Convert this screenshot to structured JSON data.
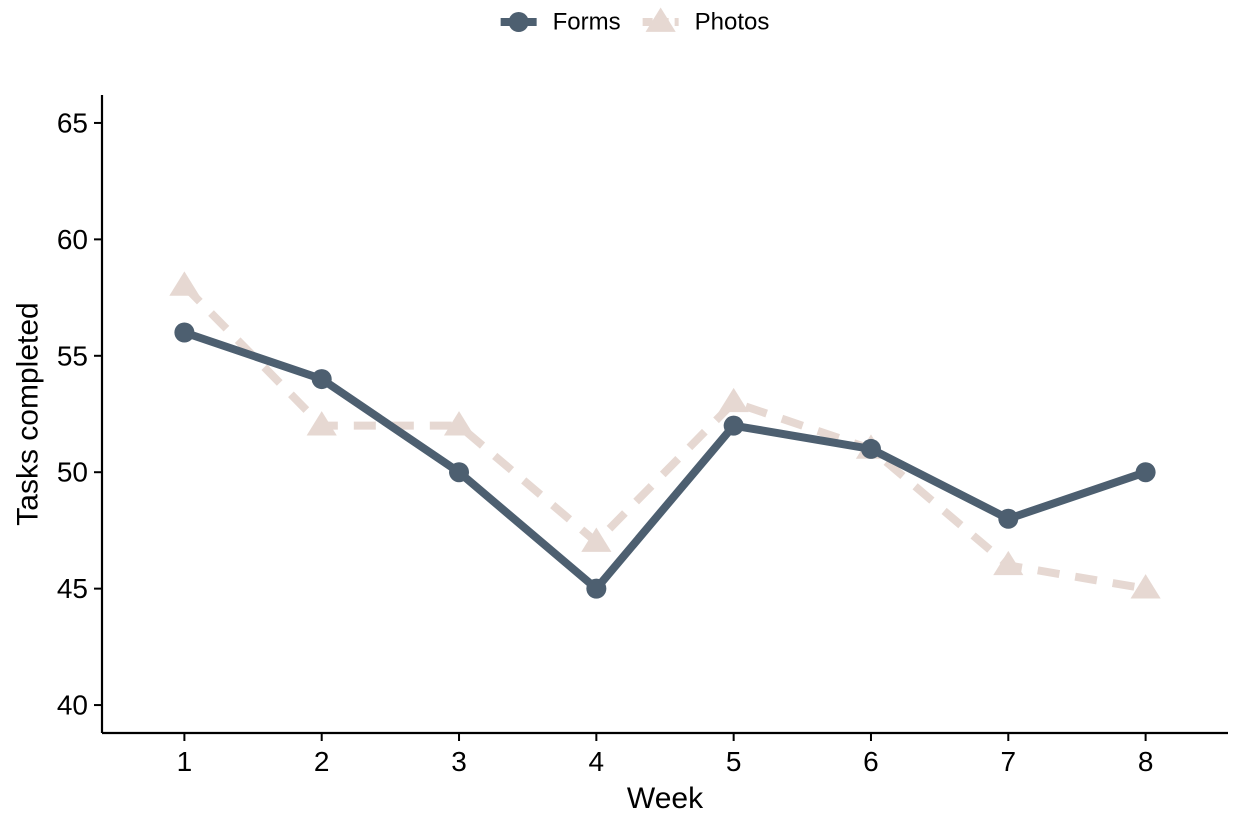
{
  "chart_data": {
    "type": "line",
    "xlabel": "Week",
    "ylabel": "Tasks completed",
    "x": [
      1,
      2,
      3,
      4,
      5,
      6,
      7,
      8
    ],
    "xlim": [
      0.4,
      8.6
    ],
    "ylim": [
      38.8,
      66.2
    ],
    "xticks": [
      1,
      2,
      3,
      4,
      5,
      6,
      7,
      8
    ],
    "yticks": [
      40,
      45,
      50,
      55,
      60,
      65
    ],
    "grid": false,
    "legend_position": "top",
    "series": [
      {
        "name": "Forms",
        "values": [
          56,
          54,
          50,
          45,
          52,
          51,
          48,
          50
        ],
        "color": "#4d5f70",
        "line_style": "solid",
        "marker": "circle"
      },
      {
        "name": "Photos",
        "values": [
          58,
          52,
          52,
          47,
          53,
          51,
          46,
          45
        ],
        "color": "#e6d8d2",
        "line_style": "dashed",
        "marker": "triangle"
      }
    ]
  }
}
